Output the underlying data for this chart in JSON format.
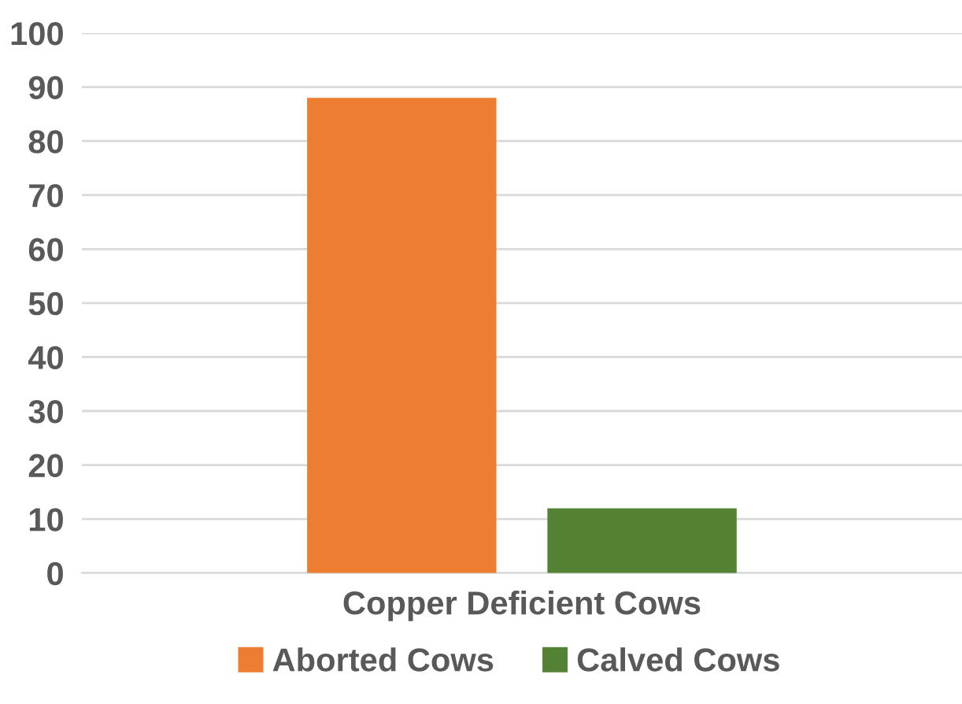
{
  "chart_data": {
    "type": "bar",
    "categories": [
      "Copper Deficient Cows"
    ],
    "series": [
      {
        "name": "Aborted Cows",
        "color": "#ed7d31",
        "values": [
          88
        ]
      },
      {
        "name": "Calved Cows",
        "color": "#548235",
        "values": [
          12
        ]
      }
    ],
    "ylim": [
      0,
      100
    ],
    "yticks": [
      0,
      10,
      20,
      30,
      40,
      50,
      60,
      70,
      80,
      90,
      100
    ],
    "grid": "y",
    "legend": "bottom"
  }
}
